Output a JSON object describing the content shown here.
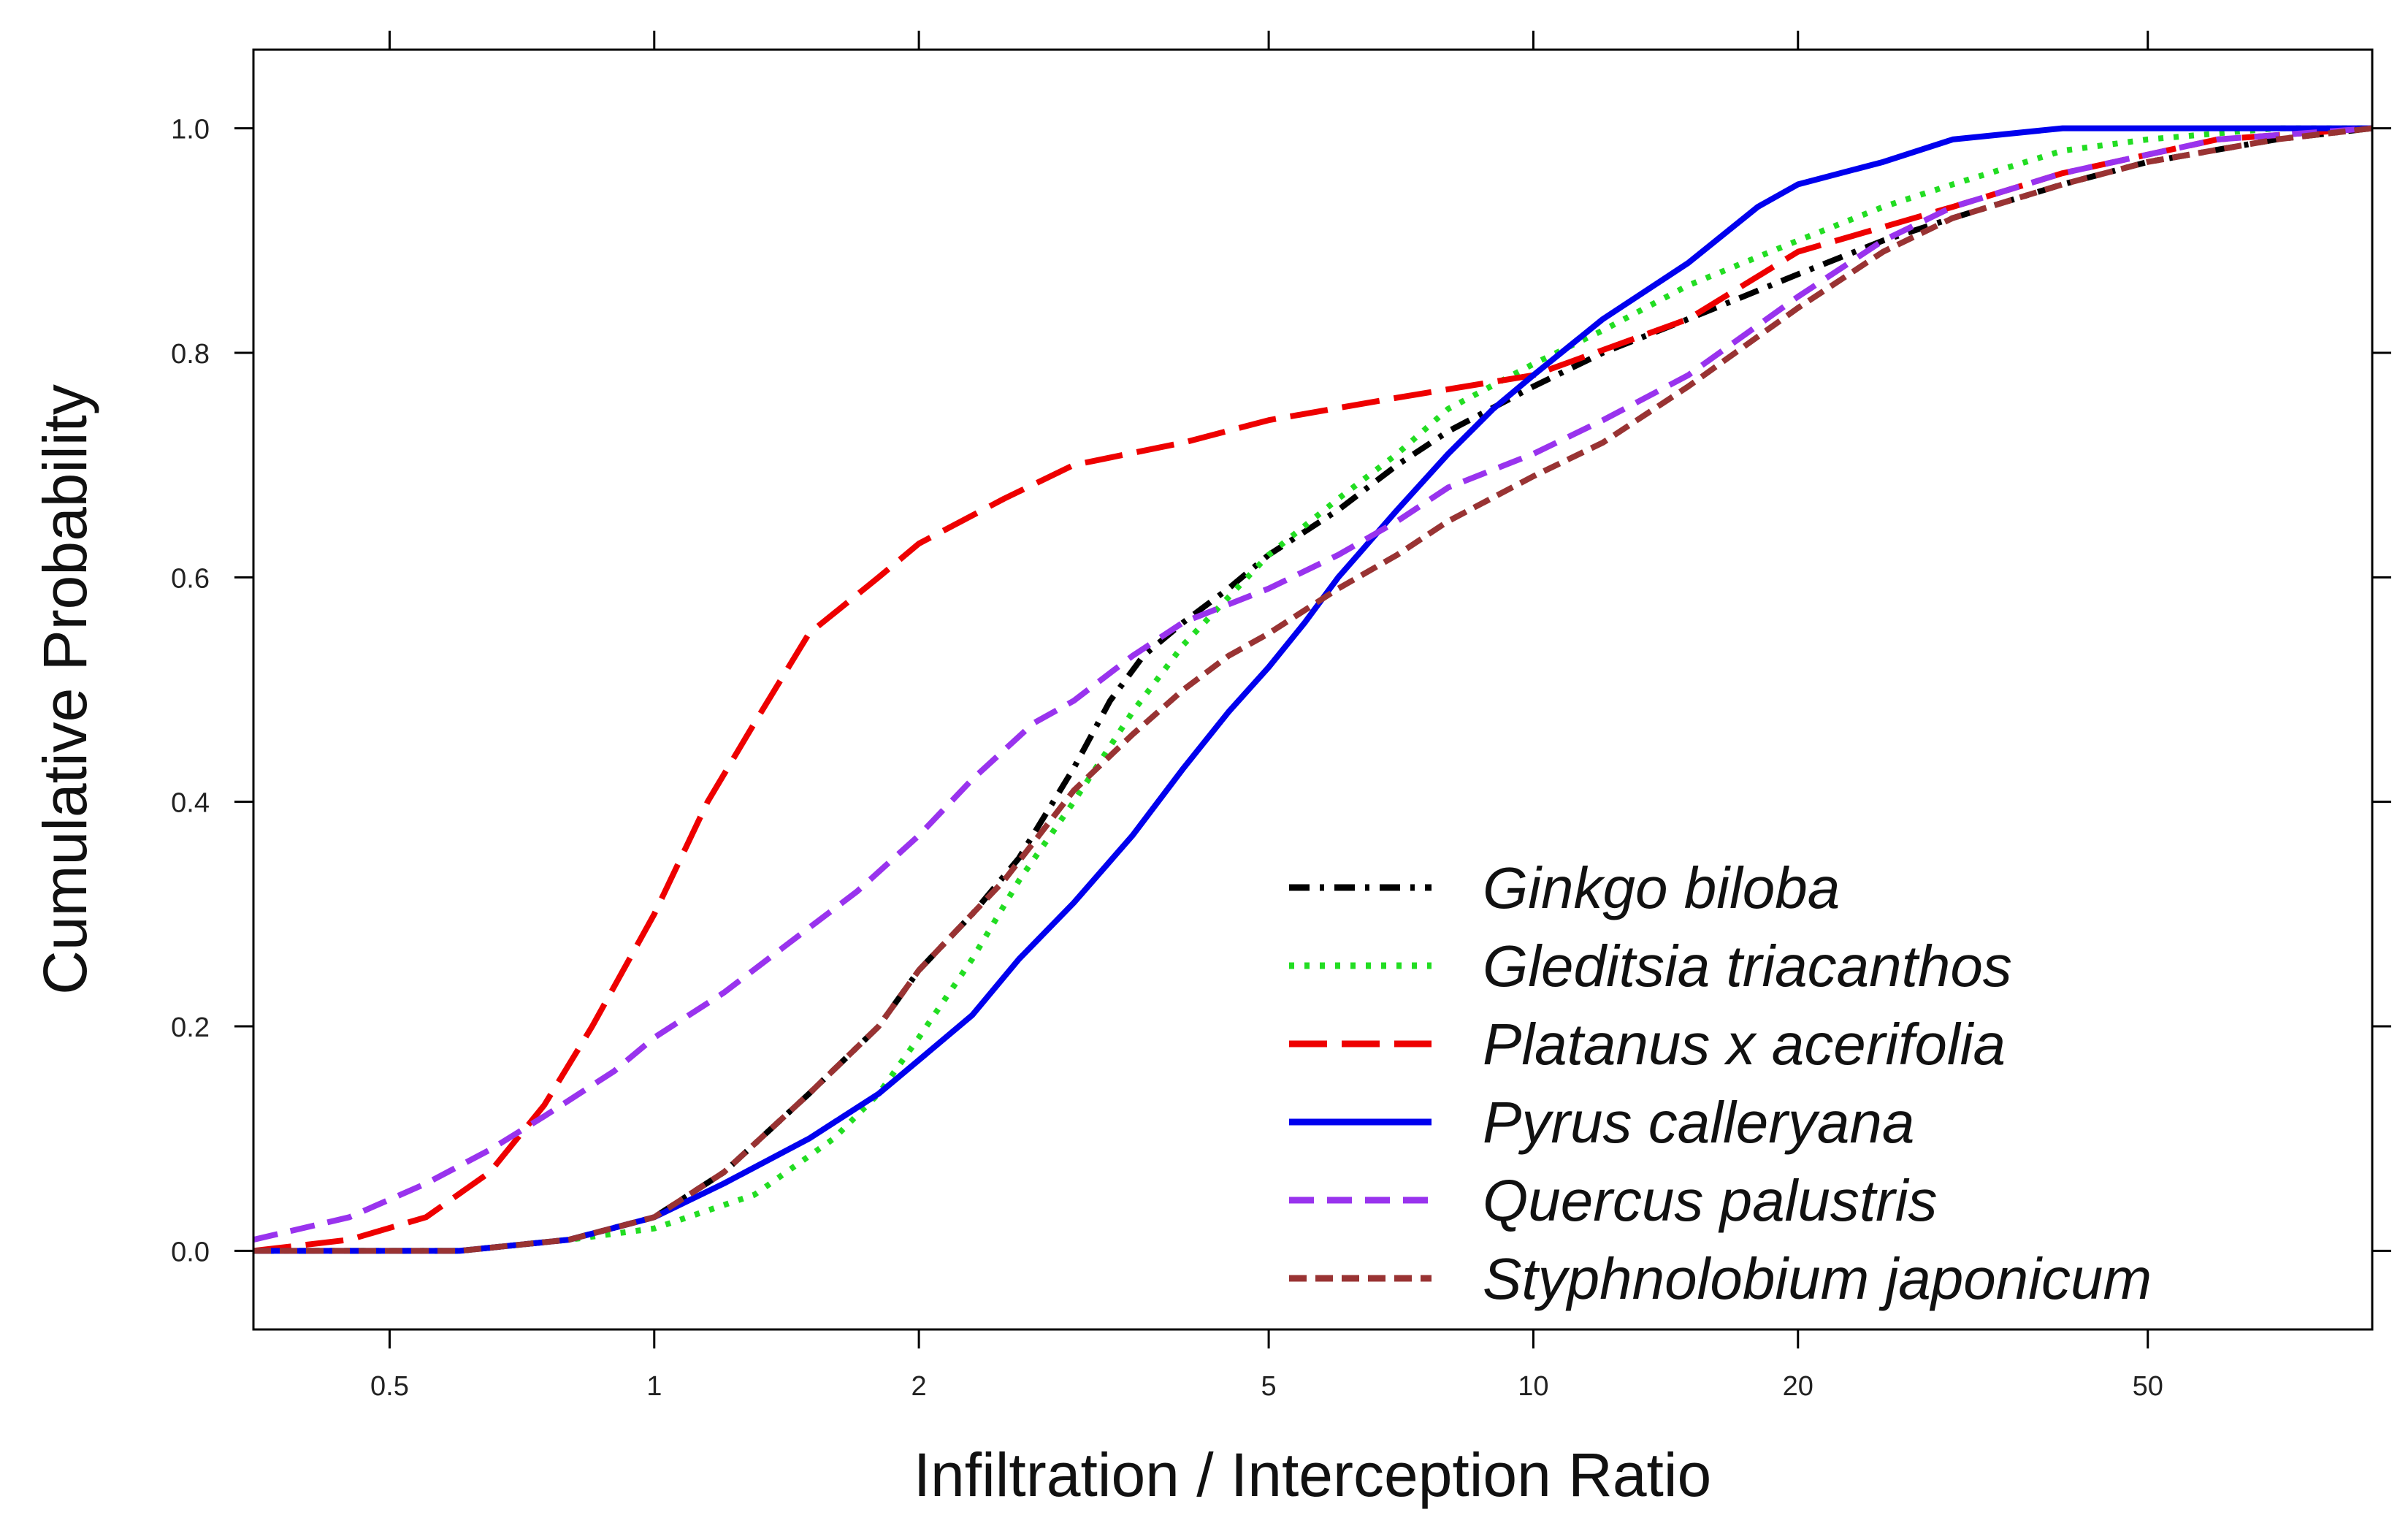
{
  "chart_data": {
    "type": "line",
    "title": "",
    "xlabel": "Infiltration / Interception Ratio",
    "ylabel": "Cumulative Probability",
    "xscale": "log",
    "xlim": [
      0.35,
      90
    ],
    "ylim": [
      -0.07,
      1.07
    ],
    "x_ticks": [
      {
        "value": 0.5,
        "label": "0.5"
      },
      {
        "value": 1,
        "label": "1"
      },
      {
        "value": 2,
        "label": "2"
      },
      {
        "value": 5,
        "label": "5"
      },
      {
        "value": 10,
        "label": "10"
      },
      {
        "value": 20,
        "label": "20"
      },
      {
        "value": 50,
        "label": "50"
      }
    ],
    "y_ticks": [
      {
        "value": 0.0,
        "label": "0.0"
      },
      {
        "value": 0.2,
        "label": "0.2"
      },
      {
        "value": 0.4,
        "label": "0.4"
      },
      {
        "value": 0.6,
        "label": "0.6"
      },
      {
        "value": 0.8,
        "label": "0.8"
      },
      {
        "value": 1.0,
        "label": "1.0"
      }
    ],
    "legend_position": "bottom-right",
    "series": [
      {
        "name": "Ginkgo biloba",
        "color": "#000000",
        "dash": "dot-dash",
        "x": [
          0.35,
          0.6,
          0.8,
          1.0,
          1.2,
          1.5,
          1.8,
          2.0,
          2.3,
          2.6,
          3.0,
          3.3,
          3.6,
          4.0,
          4.5,
          5.0,
          6.0,
          7.0,
          8.0,
          10.0,
          12.0,
          15.0,
          20.0,
          25.0,
          30.0,
          40.0,
          50.0,
          70.0,
          90.0
        ],
        "y": [
          0.0,
          0.0,
          0.01,
          0.03,
          0.07,
          0.14,
          0.2,
          0.25,
          0.3,
          0.35,
          0.43,
          0.49,
          0.53,
          0.56,
          0.59,
          0.62,
          0.66,
          0.7,
          0.73,
          0.77,
          0.8,
          0.83,
          0.87,
          0.9,
          0.92,
          0.95,
          0.97,
          0.99,
          1.0
        ]
      },
      {
        "name": "Gleditsia triacanthos",
        "color": "#22dd22",
        "dash": "dotted",
        "x": [
          0.35,
          0.6,
          0.8,
          1.0,
          1.3,
          1.6,
          1.8,
          2.0,
          2.3,
          2.6,
          3.0,
          3.5,
          4.0,
          5.0,
          6.0,
          7.0,
          8.0,
          10.0,
          12.0,
          15.0,
          20.0,
          25.0,
          30.0,
          40.0,
          50.0,
          70.0,
          90.0
        ],
        "y": [
          0.0,
          0.0,
          0.01,
          0.02,
          0.05,
          0.1,
          0.14,
          0.19,
          0.26,
          0.33,
          0.4,
          0.48,
          0.54,
          0.62,
          0.67,
          0.71,
          0.75,
          0.79,
          0.82,
          0.86,
          0.9,
          0.93,
          0.95,
          0.98,
          0.99,
          1.0,
          1.0
        ]
      },
      {
        "name": "Platanus x acerifolia",
        "color": "#ee0000",
        "dash": "long-dash",
        "x": [
          0.35,
          0.45,
          0.55,
          0.65,
          0.75,
          0.85,
          1.0,
          1.15,
          1.3,
          1.5,
          1.8,
          2.0,
          2.5,
          3.0,
          4.0,
          5.0,
          7.0,
          10.0,
          15.0,
          20.0,
          30.0,
          40.0,
          60.0,
          90.0
        ],
        "y": [
          0.0,
          0.01,
          0.03,
          0.07,
          0.13,
          0.2,
          0.3,
          0.4,
          0.47,
          0.55,
          0.6,
          0.63,
          0.67,
          0.7,
          0.72,
          0.74,
          0.76,
          0.78,
          0.83,
          0.89,
          0.93,
          0.96,
          0.99,
          1.0
        ]
      },
      {
        "name": "Pyrus calleryana",
        "color": "#0000ee",
        "dash": "solid",
        "x": [
          0.35,
          0.6,
          0.8,
          1.0,
          1.2,
          1.5,
          1.8,
          2.0,
          2.3,
          2.6,
          3.0,
          3.5,
          4.0,
          4.5,
          5.0,
          5.5,
          6.0,
          7.0,
          8.0,
          9.0,
          10.0,
          12.0,
          15.0,
          18.0,
          20.0,
          25.0,
          30.0,
          40.0,
          60.0,
          90.0
        ],
        "y": [
          0.0,
          0.0,
          0.01,
          0.03,
          0.06,
          0.1,
          0.14,
          0.17,
          0.21,
          0.26,
          0.31,
          0.37,
          0.43,
          0.48,
          0.52,
          0.56,
          0.6,
          0.66,
          0.71,
          0.75,
          0.78,
          0.83,
          0.88,
          0.93,
          0.95,
          0.97,
          0.99,
          1.0,
          1.0,
          1.0
        ]
      },
      {
        "name": "Quercus palustris",
        "color": "#9933ee",
        "dash": "dashed",
        "x": [
          0.35,
          0.45,
          0.55,
          0.65,
          0.75,
          0.9,
          1.0,
          1.2,
          1.4,
          1.7,
          2.0,
          2.3,
          2.7,
          3.0,
          3.5,
          4.0,
          5.0,
          6.0,
          7.0,
          8.0,
          10.0,
          12.0,
          15.0,
          20.0,
          25.0,
          30.0,
          40.0,
          60.0,
          90.0
        ],
        "y": [
          0.01,
          0.03,
          0.06,
          0.09,
          0.12,
          0.16,
          0.19,
          0.23,
          0.27,
          0.32,
          0.37,
          0.42,
          0.47,
          0.49,
          0.53,
          0.56,
          0.59,
          0.62,
          0.65,
          0.68,
          0.71,
          0.74,
          0.78,
          0.85,
          0.9,
          0.93,
          0.96,
          0.99,
          1.0
        ]
      },
      {
        "name": "Styphnolobium japonicum",
        "color": "#993333",
        "dash": "short-dash",
        "x": [
          0.35,
          0.6,
          0.8,
          1.0,
          1.2,
          1.5,
          1.8,
          2.0,
          2.5,
          3.0,
          3.5,
          4.0,
          4.5,
          5.0,
          6.0,
          7.0,
          8.0,
          10.0,
          12.0,
          15.0,
          20.0,
          25.0,
          30.0,
          40.0,
          50.0,
          70.0,
          90.0
        ],
        "y": [
          0.0,
          0.0,
          0.01,
          0.03,
          0.07,
          0.14,
          0.2,
          0.25,
          0.33,
          0.41,
          0.46,
          0.5,
          0.53,
          0.55,
          0.59,
          0.62,
          0.65,
          0.69,
          0.72,
          0.77,
          0.84,
          0.89,
          0.92,
          0.95,
          0.97,
          0.99,
          1.0
        ]
      }
    ]
  }
}
